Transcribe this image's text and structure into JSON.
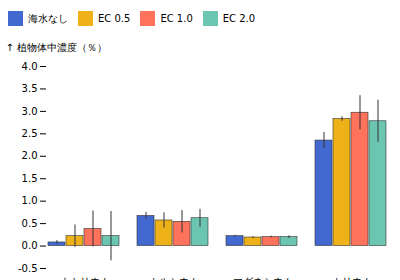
{
  "chart_data": {
    "type": "bar",
    "categories": [
      "ナトリウム",
      "カルシウム",
      "マグネシウム",
      "カリウム"
    ],
    "series": [
      {
        "name": "海水なし",
        "values": [
          0.08,
          0.67,
          0.22,
          2.35
        ],
        "errors": [
          0.04,
          0.08,
          0.02,
          0.18
        ]
      },
      {
        "name": "EC 0.5",
        "values": [
          0.22,
          0.57,
          0.19,
          2.83
        ],
        "errors": [
          0.25,
          0.17,
          0.02,
          0.05
        ]
      },
      {
        "name": "EC 1.0",
        "values": [
          0.38,
          0.54,
          0.2,
          2.97
        ],
        "errors": [
          0.4,
          0.25,
          0.02,
          0.38
        ]
      },
      {
        "name": "EC 2.0",
        "values": [
          0.22,
          0.62,
          0.2,
          2.78
        ],
        "errors": [
          0.55,
          0.2,
          0.03,
          0.47
        ]
      }
    ],
    "ylabel": "植物体中濃度（％）",
    "ylim": [
      -0.5,
      4.0
    ],
    "yticks": [
      {
        "value": -0.5,
        "label": "-0.5"
      },
      {
        "value": 0,
        "label": "0.0"
      },
      {
        "value": 0.5,
        "label": "0.5"
      },
      {
        "value": 1,
        "label": "1.0"
      },
      {
        "value": 1.5,
        "label": "1.5"
      },
      {
        "value": 2,
        "label": "2.0"
      },
      {
        "value": 2.5,
        "label": "2.5"
      },
      {
        "value": 3,
        "label": "3.0"
      },
      {
        "value": 3.5,
        "label": "3.5"
      },
      {
        "value": 4,
        "label": "4.0"
      }
    ],
    "grid": false,
    "legend": "upper left"
  }
}
